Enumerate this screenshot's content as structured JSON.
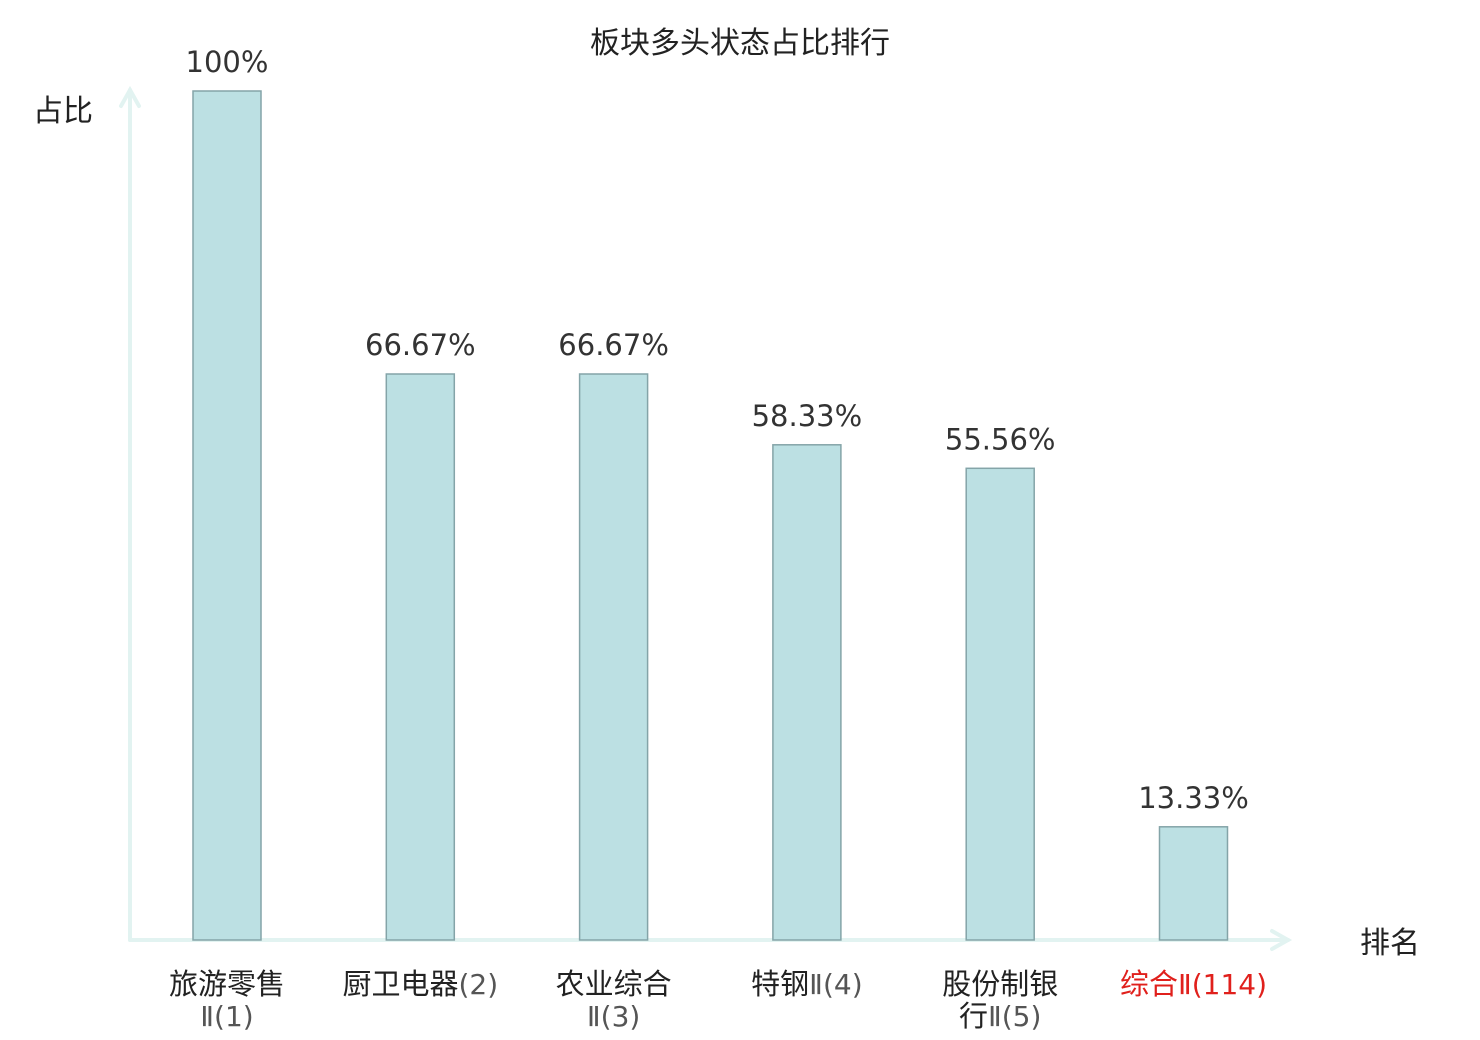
{
  "chart_data": {
    "type": "bar",
    "title": "板块多头状态占比排行",
    "ylabel": "占比",
    "xlabel": "排名",
    "ylim": [
      0,
      100
    ],
    "grid": false,
    "legend": "none",
    "categories": [
      {
        "name_lines": [
          "旅游零售",
          "Ⅱ(1)"
        ],
        "highlight": false
      },
      {
        "name_lines": [
          "厨卫电器(2)"
        ],
        "highlight": false
      },
      {
        "name_lines": [
          "农业综合",
          "Ⅱ(3)"
        ],
        "highlight": false
      },
      {
        "name_lines": [
          "特钢Ⅱ(4)"
        ],
        "highlight": false
      },
      {
        "name_lines": [
          "股份制银",
          "行Ⅱ(5)"
        ],
        "highlight": false
      },
      {
        "name_lines": [
          "综合Ⅱ(114)"
        ],
        "highlight": true
      }
    ],
    "values": [
      100,
      66.67,
      66.67,
      58.33,
      55.56,
      13.33
    ],
    "value_labels": [
      "100%",
      "66.67%",
      "66.67%",
      "58.33%",
      "55.56%",
      "13.33%"
    ]
  },
  "colors": {
    "bar_fill": "#bce0e3",
    "bar_stroke": "#84a4a8",
    "axis": "#e2f3f1",
    "highlight_text": "#e0201c",
    "text": "#222222",
    "value_text": "#333333",
    "suffix_text": "#555555"
  }
}
